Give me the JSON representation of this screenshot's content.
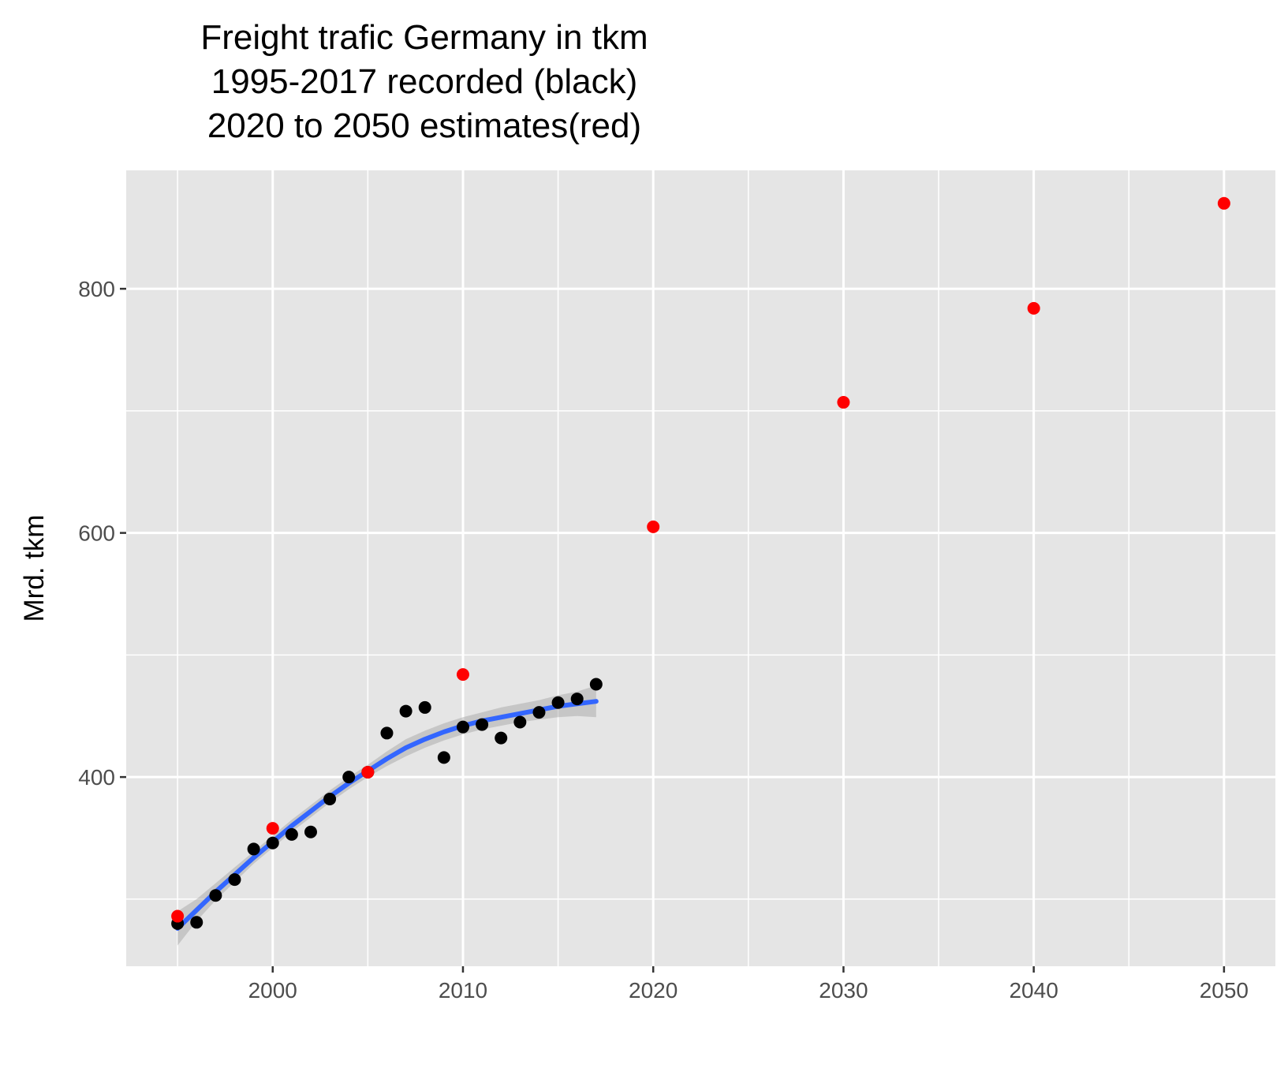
{
  "chart_data": {
    "type": "scatter",
    "title_lines": [
      "Freight trafic Germany in tkm",
      "1995-2017 recorded (black)",
      "2020 to 2050 estimates(red)"
    ],
    "xlabel": "",
    "ylabel": "Mrd. tkm",
    "xlim": [
      1992.3,
      2052.7
    ],
    "ylim": [
      245,
      897
    ],
    "x_major_ticks": [
      2000,
      2010,
      2020,
      2030,
      2040,
      2050
    ],
    "x_tick_labels": [
      "2000",
      "2010",
      "2020",
      "2030",
      "2040",
      "2050"
    ],
    "x_minor_gridlines": [
      1995,
      2005,
      2015,
      2025,
      2035,
      2045
    ],
    "y_major_ticks": [
      400,
      600,
      800
    ],
    "y_tick_labels": [
      "400",
      "600",
      "800"
    ],
    "y_minor_gridlines": [
      300,
      500,
      700
    ],
    "grid": true,
    "legend": "none",
    "series": [
      {
        "kind": "points",
        "color": "#000000",
        "x": [
          1995,
          1996,
          1997,
          1998,
          1999,
          2000,
          2001,
          2002,
          2003,
          2004,
          2005,
          2006,
          2007,
          2008,
          2009,
          2010,
          2011,
          2012,
          2013,
          2014,
          2015,
          2016,
          2017
        ],
        "y": [
          280,
          281,
          303,
          316,
          341,
          346,
          353,
          355,
          382,
          400,
          404,
          436,
          454,
          457,
          416,
          441,
          443,
          432,
          445,
          453,
          461,
          464,
          476
        ]
      },
      {
        "kind": "points",
        "color": "#ff0000",
        "x": [
          1995,
          2000,
          2005,
          2010,
          2020,
          2030,
          2040,
          2050
        ],
        "y": [
          286,
          358,
          404,
          484,
          605,
          707,
          784,
          870
        ]
      },
      {
        "kind": "smooth",
        "color": "#3366ff",
        "band_color": "#999999",
        "x": [
          1995,
          1996,
          1997,
          1998,
          1999,
          2000,
          2001,
          2002,
          2003,
          2004,
          2005,
          2006,
          2007,
          2008,
          2009,
          2010,
          2011,
          2012,
          2013,
          2014,
          2015,
          2016,
          2017
        ],
        "y": [
          276,
          291,
          306,
          320,
          334,
          347,
          360,
          372,
          384,
          395,
          405,
          415,
          424,
          431,
          437,
          442,
          446,
          449,
          452,
          455,
          458,
          460,
          462
        ],
        "lower": [
          262,
          282,
          299,
          314,
          329,
          342,
          355,
          367,
          379,
          390,
          400,
          409,
          417,
          424,
          430,
          435,
          439,
          442,
          445,
          447,
          449,
          450,
          449
        ],
        "upper": [
          290,
          300,
          313,
          326,
          339,
          352,
          365,
          377,
          389,
          400,
          410,
          421,
          431,
          438,
          444,
          449,
          453,
          457,
          460,
          463,
          467,
          470,
          475
        ]
      }
    ]
  }
}
